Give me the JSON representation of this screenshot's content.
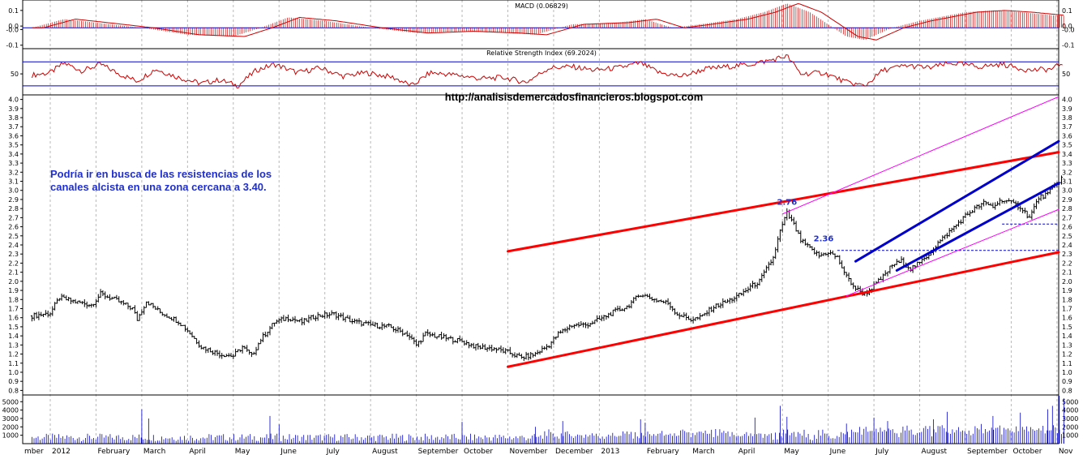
{
  "chart_data": {
    "type": "candlestick",
    "watermark": "http://analisisdemercadosfinancieros.blogspot.com",
    "annotation": [
      "Podría ir en busca de las resistencias de los",
      "canales alcista en una zona cercana a 3.40."
    ],
    "x_axis": {
      "labels": [
        "mber",
        "2012",
        "February",
        "March",
        "April",
        "May",
        "June",
        "July",
        "August",
        "September",
        "October",
        "November",
        "December",
        "2013",
        "February",
        "March",
        "April",
        "May",
        "June",
        "July",
        "August",
        "September",
        "October",
        "Nov"
      ],
      "positions_month_index": [
        -0.5,
        0,
        1,
        2,
        3,
        4,
        5,
        6,
        7,
        8,
        9,
        10,
        11,
        12,
        13,
        14,
        15,
        16,
        17,
        18,
        19,
        20,
        21,
        22
      ]
    },
    "price_panel": {
      "y_ticks": [
        "4.0",
        "3.9",
        "3.8",
        "3.7",
        "3.6",
        "3.5",
        "3.4",
        "3.3",
        "3.2",
        "3.1",
        "3.0",
        "2.9",
        "2.8",
        "2.7",
        "2.6",
        "2.5",
        "2.4",
        "2.3",
        "2.2",
        "2.1",
        "2.0",
        "1.9",
        "1.8",
        "1.7",
        "1.6",
        "1.5",
        "1.4",
        "1.3",
        "1.2",
        "1.1",
        "1.0",
        "0.9",
        "0.8"
      ],
      "ylim": [
        0.75,
        4.05
      ],
      "close_series": [
        [
          -0.4,
          1.62
        ],
        [
          0,
          1.65
        ],
        [
          0.2,
          1.82
        ],
        [
          0.5,
          1.78
        ],
        [
          0.9,
          1.74
        ],
        [
          1.1,
          1.86
        ],
        [
          1.4,
          1.8
        ],
        [
          1.8,
          1.7
        ],
        [
          1.9,
          1.58
        ],
        [
          2.1,
          1.78
        ],
        [
          2.4,
          1.66
        ],
        [
          2.8,
          1.56
        ],
        [
          3.0,
          1.46
        ],
        [
          3.3,
          1.28
        ],
        [
          3.7,
          1.2
        ],
        [
          4.0,
          1.18
        ],
        [
          4.2,
          1.28
        ],
        [
          4.4,
          1.18
        ],
        [
          4.6,
          1.36
        ],
        [
          4.9,
          1.55
        ],
        [
          5.2,
          1.6
        ],
        [
          5.5,
          1.55
        ],
        [
          5.8,
          1.62
        ],
        [
          6.2,
          1.64
        ],
        [
          6.6,
          1.56
        ],
        [
          7.0,
          1.52
        ],
        [
          7.4,
          1.5
        ],
        [
          7.8,
          1.42
        ],
        [
          8.0,
          1.3
        ],
        [
          8.2,
          1.42
        ],
        [
          8.6,
          1.38
        ],
        [
          9.0,
          1.34
        ],
        [
          9.3,
          1.28
        ],
        [
          9.7,
          1.26
        ],
        [
          10.0,
          1.22
        ],
        [
          10.3,
          1.16
        ],
        [
          10.6,
          1.2
        ],
        [
          10.9,
          1.3
        ],
        [
          11.1,
          1.42
        ],
        [
          11.4,
          1.52
        ],
        [
          11.7,
          1.52
        ],
        [
          12.0,
          1.58
        ],
        [
          12.3,
          1.66
        ],
        [
          12.6,
          1.72
        ],
        [
          12.9,
          1.86
        ],
        [
          13.2,
          1.8
        ],
        [
          13.5,
          1.76
        ],
        [
          13.7,
          1.64
        ],
        [
          14.0,
          1.58
        ],
        [
          14.2,
          1.6
        ],
        [
          14.5,
          1.72
        ],
        [
          14.8,
          1.78
        ],
        [
          15.1,
          1.86
        ],
        [
          15.3,
          1.94
        ],
        [
          15.5,
          2.0
        ],
        [
          15.8,
          2.26
        ],
        [
          15.95,
          2.55
        ],
        [
          16.1,
          2.75
        ],
        [
          16.25,
          2.62
        ],
        [
          16.4,
          2.45
        ],
        [
          16.6,
          2.36
        ],
        [
          16.8,
          2.28
        ],
        [
          17.0,
          2.32
        ],
        [
          17.2,
          2.26
        ],
        [
          17.4,
          2.05
        ],
        [
          17.6,
          1.92
        ],
        [
          17.8,
          1.86
        ],
        [
          18.0,
          1.95
        ],
        [
          18.2,
          2.05
        ],
        [
          18.4,
          2.18
        ],
        [
          18.6,
          2.22
        ],
        [
          18.8,
          2.14
        ],
        [
          19.0,
          2.2
        ],
        [
          19.2,
          2.3
        ],
        [
          19.4,
          2.42
        ],
        [
          19.6,
          2.52
        ],
        [
          19.8,
          2.62
        ],
        [
          20.0,
          2.72
        ],
        [
          20.2,
          2.8
        ],
        [
          20.4,
          2.86
        ],
        [
          20.6,
          2.82
        ],
        [
          20.8,
          2.9
        ],
        [
          21.0,
          2.86
        ],
        [
          21.2,
          2.82
        ],
        [
          21.4,
          2.7
        ],
        [
          21.6,
          2.92
        ],
        [
          21.8,
          2.96
        ],
        [
          22.0,
          3.08
        ],
        [
          22.15,
          3.16
        ]
      ],
      "peak_labels": [
        {
          "text": "2.76",
          "month": 16.1,
          "value": 2.76
        },
        {
          "text": "2.36",
          "month": 16.9,
          "value": 2.36
        }
      ],
      "lines": [
        {
          "name": "red-channel-upper",
          "color": "#ff0000",
          "width": 3,
          "from": [
            10.0,
            2.33
          ],
          "to": [
            23.0,
            3.42
          ]
        },
        {
          "name": "red-channel-lower",
          "color": "#ff0000",
          "width": 3,
          "from": [
            10.0,
            1.06
          ],
          "to": [
            23.0,
            2.32
          ]
        },
        {
          "name": "magenta-upper",
          "color": "#ff00ff",
          "width": 1,
          "from": [
            16.0,
            2.74
          ],
          "to": [
            23.0,
            4.03
          ]
        },
        {
          "name": "magenta-lower",
          "color": "#ff00ff",
          "width": 1,
          "from": [
            17.4,
            1.84
          ],
          "to": [
            23.0,
            2.79
          ]
        },
        {
          "name": "blue-channel-upper",
          "color": "#0000cc",
          "width": 3,
          "from": [
            17.6,
            2.22
          ],
          "to": [
            23.0,
            3.54
          ]
        },
        {
          "name": "blue-channel-lower",
          "color": "#0000cc",
          "width": 3,
          "from": [
            18.5,
            2.12
          ],
          "to": [
            23.0,
            3.08
          ]
        }
      ],
      "dashed_levels": [
        {
          "name": "level-2.34",
          "value": 2.34,
          "from_month": 17.2,
          "to_month": 23.0
        },
        {
          "name": "level-2.63",
          "value": 2.63,
          "from_month": 20.8,
          "to_month": 23.0
        }
      ]
    },
    "macd_panel": {
      "title": "MACD (0.06829)",
      "y_ticks": [
        "0.1",
        "0.0",
        "-0.0",
        "-0.1"
      ],
      "ylim": [
        -0.12,
        0.16
      ],
      "series": [
        [
          -0.4,
          0.0
        ],
        [
          0.3,
          0.05
        ],
        [
          1.0,
          0.03
        ],
        [
          2.0,
          0.0
        ],
        [
          3.0,
          -0.04
        ],
        [
          4.0,
          -0.05
        ],
        [
          4.6,
          0.0
        ],
        [
          5.2,
          0.06
        ],
        [
          6.0,
          0.04
        ],
        [
          7.0,
          0.0
        ],
        [
          8.0,
          -0.03
        ],
        [
          9.0,
          -0.02
        ],
        [
          10.0,
          -0.03
        ],
        [
          10.6,
          -0.04
        ],
        [
          11.4,
          0.02
        ],
        [
          12.4,
          0.03
        ],
        [
          13.0,
          0.05
        ],
        [
          13.6,
          0.0
        ],
        [
          14.2,
          0.02
        ],
        [
          15.0,
          0.05
        ],
        [
          15.6,
          0.09
        ],
        [
          16.1,
          0.14
        ],
        [
          16.6,
          0.09
        ],
        [
          17.0,
          0.02
        ],
        [
          17.4,
          -0.05
        ],
        [
          17.8,
          -0.07
        ],
        [
          18.4,
          0.0
        ],
        [
          19.0,
          0.04
        ],
        [
          20.0,
          0.09
        ],
        [
          20.6,
          0.1
        ],
        [
          21.2,
          0.09
        ],
        [
          22.0,
          0.07
        ]
      ]
    },
    "rsi_panel": {
      "title": "Relative Strength Index (69.2024)",
      "y_ticks": [
        "50"
      ],
      "ylim": [
        15,
        92
      ],
      "levels": [
        70,
        30
      ],
      "series": [
        [
          -0.4,
          48
        ],
        [
          0,
          52
        ],
        [
          0.3,
          68
        ],
        [
          0.7,
          55
        ],
        [
          1.1,
          66
        ],
        [
          1.5,
          50
        ],
        [
          1.9,
          38
        ],
        [
          2.3,
          58
        ],
        [
          2.8,
          44
        ],
        [
          3.3,
          34
        ],
        [
          3.7,
          40
        ],
        [
          4.1,
          30
        ],
        [
          4.5,
          56
        ],
        [
          4.9,
          66
        ],
        [
          5.4,
          52
        ],
        [
          5.9,
          60
        ],
        [
          6.4,
          46
        ],
        [
          6.9,
          52
        ],
        [
          7.5,
          44
        ],
        [
          7.9,
          30
        ],
        [
          8.3,
          52
        ],
        [
          8.9,
          48
        ],
        [
          9.4,
          42
        ],
        [
          9.9,
          44
        ],
        [
          10.4,
          36
        ],
        [
          10.9,
          60
        ],
        [
          11.4,
          62
        ],
        [
          11.9,
          56
        ],
        [
          12.4,
          60
        ],
        [
          12.9,
          68
        ],
        [
          13.3,
          52
        ],
        [
          13.8,
          46
        ],
        [
          14.3,
          58
        ],
        [
          14.8,
          62
        ],
        [
          15.3,
          66
        ],
        [
          15.7,
          72
        ],
        [
          16.1,
          80
        ],
        [
          16.4,
          50
        ],
        [
          16.9,
          52
        ],
        [
          17.4,
          36
        ],
        [
          17.8,
          30
        ],
        [
          18.2,
          56
        ],
        [
          18.7,
          64
        ],
        [
          19.2,
          60
        ],
        [
          19.7,
          68
        ],
        [
          20.3,
          62
        ],
        [
          20.8,
          66
        ],
        [
          21.4,
          56
        ],
        [
          21.9,
          58
        ],
        [
          22.15,
          70
        ]
      ]
    },
    "volume_panel": {
      "y_ticks": [
        "5000",
        "4000",
        "3000",
        "2000",
        "1000"
      ],
      "ylim": [
        0,
        5800
      ],
      "spikes": [
        {
          "month": 2.0,
          "value": 4100
        },
        {
          "month": 2.15,
          "value": 3000
        },
        {
          "month": 4.8,
          "value": 3300
        },
        {
          "month": 5.0,
          "value": 2300
        },
        {
          "month": 9.0,
          "value": 2600
        },
        {
          "month": 10.6,
          "value": 2000
        },
        {
          "month": 11.2,
          "value": 2700
        },
        {
          "month": 12.9,
          "value": 2900
        },
        {
          "month": 13.0,
          "value": 2500
        },
        {
          "month": 15.4,
          "value": 3100
        },
        {
          "month": 15.95,
          "value": 4500
        },
        {
          "month": 16.1,
          "value": 3200
        },
        {
          "month": 17.4,
          "value": 2400
        },
        {
          "month": 18.0,
          "value": 3100
        },
        {
          "month": 18.3,
          "value": 2700
        },
        {
          "month": 19.3,
          "value": 2900
        },
        {
          "month": 19.6,
          "value": 3800
        },
        {
          "month": 20.6,
          "value": 3300
        },
        {
          "month": 21.2,
          "value": 3700
        },
        {
          "month": 21.8,
          "value": 4100
        },
        {
          "month": 21.9,
          "value": 4500
        },
        {
          "month": 22.05,
          "value": 5700
        },
        {
          "month": 22.15,
          "value": 5400
        }
      ]
    }
  }
}
